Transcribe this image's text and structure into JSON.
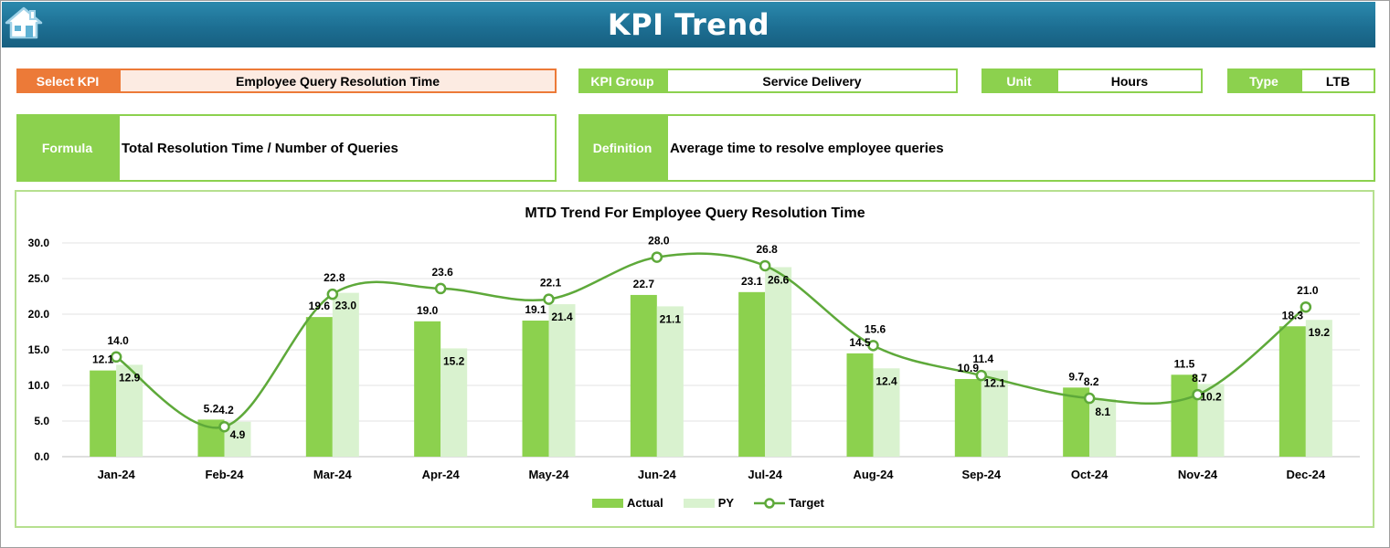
{
  "header": {
    "title": "KPI Trend",
    "home_icon": "home-icon"
  },
  "kpi": {
    "select_label": "Select KPI",
    "select_value": "Employee Query Resolution Time",
    "group_label": "KPI Group",
    "group_value": "Service Delivery",
    "unit_label": "Unit",
    "unit_value": "Hours",
    "type_label": "Type",
    "type_value": "LTB",
    "formula_label": "Formula",
    "formula_value": "Total Resolution Time / Number of Queries",
    "definition_label": "Definition",
    "definition_value": "Average time to resolve employee queries"
  },
  "colors": {
    "banner": "#1d6f93",
    "label_green": "#8cd14e",
    "label_orange": "#ec7a38",
    "actual": "#8cd14e",
    "py": "#d9f2cf",
    "target": "#5ea93a"
  },
  "chart_data": {
    "type": "bar",
    "title": "MTD Trend For Employee Query Resolution Time",
    "categories": [
      "Jan-24",
      "Feb-24",
      "Mar-24",
      "Apr-24",
      "May-24",
      "Jun-24",
      "Jul-24",
      "Aug-24",
      "Sep-24",
      "Oct-24",
      "Nov-24",
      "Dec-24"
    ],
    "series": [
      {
        "name": "Actual",
        "kind": "bar",
        "values": [
          12.1,
          5.2,
          19.6,
          19.0,
          19.1,
          22.7,
          23.1,
          14.5,
          10.9,
          9.7,
          11.5,
          18.3
        ]
      },
      {
        "name": "PY",
        "kind": "bar",
        "values": [
          12.9,
          4.9,
          23.0,
          15.2,
          21.4,
          21.1,
          26.6,
          12.4,
          12.1,
          8.1,
          10.2,
          19.2
        ]
      },
      {
        "name": "Target",
        "kind": "line",
        "values": [
          14.0,
          4.2,
          22.8,
          23.6,
          22.1,
          28.0,
          26.8,
          15.6,
          11.4,
          8.2,
          8.7,
          21.0
        ]
      }
    ],
    "yticks": [
      "0.0",
      "5.0",
      "10.0",
      "15.0",
      "20.0",
      "25.0",
      "30.0"
    ],
    "ylim": [
      0,
      30
    ],
    "xlabel": "",
    "ylabel": "",
    "grid": true,
    "legend": "bottom"
  }
}
